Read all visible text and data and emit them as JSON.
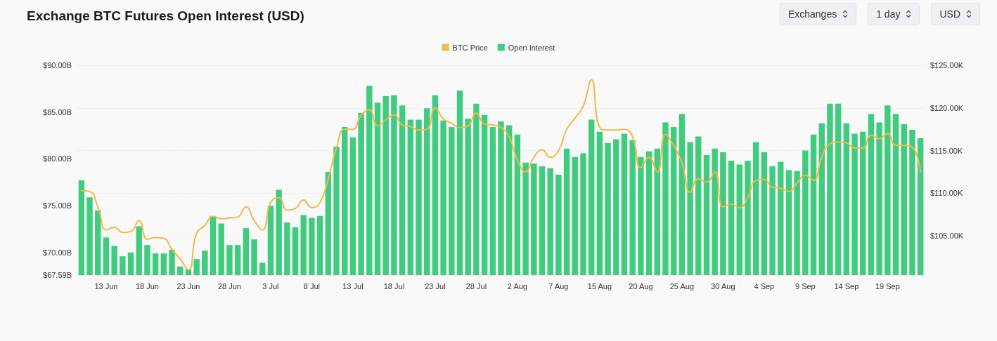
{
  "chart_data": {
    "type": "bar",
    "title": "Exchange BTC Futures Open Interest (USD)",
    "annotations": [
      "Exchanges",
      "1 day",
      "USD"
    ],
    "categories": [
      null,
      null,
      null,
      "13 Jun",
      null,
      null,
      null,
      null,
      "18 Jun",
      null,
      null,
      null,
      null,
      "23 Jun",
      null,
      null,
      null,
      null,
      "28 Jun",
      null,
      null,
      null,
      null,
      "3 Jul",
      null,
      null,
      null,
      null,
      "8 Jul",
      null,
      null,
      null,
      null,
      "13 Jul",
      null,
      null,
      null,
      null,
      "18 Jul",
      null,
      null,
      null,
      null,
      "23 Jul",
      null,
      null,
      null,
      null,
      "28 Jul",
      null,
      null,
      null,
      null,
      "2 Aug",
      null,
      null,
      null,
      null,
      "7 Aug",
      null,
      null,
      null,
      null,
      "15 Aug",
      null,
      null,
      null,
      null,
      "20 Aug",
      null,
      null,
      null,
      null,
      "25 Aug",
      null,
      null,
      null,
      null,
      "30 Aug",
      null,
      null,
      null,
      null,
      "4 Sep",
      null,
      null,
      null,
      null,
      "9 Sep",
      null,
      null,
      null,
      null,
      "14 Sep",
      null,
      null,
      null,
      null,
      "19 Sep",
      null,
      null,
      null,
      null
    ],
    "series": [
      {
        "name": "BTC Price",
        "type": "line",
        "axis": "y2",
        "color": "#f0b94a",
        "values": [
          110.3,
          110.2,
          108.4,
          105.7,
          106.0,
          105.4,
          105.5,
          106.8,
          104.6,
          104.8,
          104.7,
          103.4,
          102.3,
          101.0,
          105.3,
          106.2,
          107.3,
          107.0,
          107.1,
          107.2,
          108.4,
          106.8,
          105.7,
          108.9,
          109.5,
          108.0,
          108.2,
          109.2,
          108.3,
          108.9,
          111.7,
          115.3,
          117.5,
          117.5,
          119.1,
          119.8,
          117.9,
          118.6,
          119.2,
          118.0,
          117.8,
          117.4,
          117.5,
          120.0,
          118.7,
          118.2,
          117.7,
          117.9,
          119.4,
          118.1,
          118.0,
          117.7,
          116.6,
          113.9,
          112.5,
          114.2,
          115.1,
          114.2,
          115.0,
          117.5,
          118.8,
          120.2,
          123.3,
          117.7,
          117.4,
          117.4,
          117.5,
          116.6,
          113.0,
          114.2,
          112.5,
          116.9,
          115.6,
          113.6,
          110.1,
          111.7,
          111.3,
          112.5,
          108.4,
          108.7,
          108.3,
          109.5,
          111.5,
          111.6,
          110.7,
          110.6,
          110.2,
          111.2,
          112.1,
          111.5,
          114.2,
          115.8,
          116.0,
          115.9,
          115.3,
          115.3,
          116.8,
          116.4,
          117.0,
          115.6,
          115.6,
          115.4,
          112.5
        ]
      },
      {
        "name": "Open Interest",
        "color": "#40cc7e",
        "values": [
          77.7,
          75.9,
          74.5,
          71.6,
          70.7,
          69.6,
          70.0,
          72.8,
          70.8,
          69.9,
          69.9,
          70.3,
          68.5,
          68.2,
          69.3,
          70.2,
          73.9,
          73.1,
          70.8,
          70.8,
          72.6,
          71.4,
          68.9,
          75.0,
          76.7,
          73.2,
          72.7,
          74.0,
          73.7,
          73.9,
          78.6,
          81.3,
          83.4,
          82.3,
          84.9,
          87.8,
          86.0,
          86.7,
          86.8,
          85.7,
          84.2,
          84.2,
          85.4,
          86.8,
          84.1,
          83.4,
          87.3,
          84.3,
          85.9,
          84.7,
          83.4,
          84.0,
          83.6,
          82.6,
          79.6,
          79.5,
          79.2,
          79.0,
          78.3,
          81.1,
          80.2,
          80.6,
          84.2,
          82.9,
          81.7,
          82.1,
          82.7,
          82.0,
          80.2,
          80.8,
          81.1,
          83.9,
          83.4,
          84.8,
          81.8,
          82.4,
          80.4,
          81.1,
          80.7,
          79.8,
          79.4,
          79.8,
          81.8,
          80.7,
          79.2,
          79.7,
          78.8,
          78.7,
          80.9,
          82.6,
          83.8,
          85.9,
          85.9,
          83.8,
          82.7,
          82.9,
          84.8,
          83.9,
          85.7,
          84.8,
          83.7,
          83.1,
          82.2
        ]
      }
    ],
    "ylim": [
      67.59,
      90
    ],
    "yticks": [
      {
        "value": 67.59,
        "label": "$67.59B"
      },
      {
        "value": 70,
        "label": "$70.00B"
      },
      {
        "value": 75,
        "label": "$75.00B"
      },
      {
        "value": 80,
        "label": "$80.00B"
      },
      {
        "value": 85,
        "label": "$85.00B"
      },
      {
        "value": 90,
        "label": "$90.00B"
      }
    ],
    "y2lim": [
      100.4,
      125
    ],
    "y2ticks": [
      {
        "value": 105,
        "label": "$105.00K"
      },
      {
        "value": 110,
        "label": "$110.00K"
      },
      {
        "value": 115,
        "label": "$115.00K"
      },
      {
        "value": 120,
        "label": "$120.00K"
      },
      {
        "value": 125,
        "label": "$125.00K"
      }
    ],
    "grid": "y2",
    "legend": "top",
    "marker": "none",
    "line_style": "solid"
  }
}
